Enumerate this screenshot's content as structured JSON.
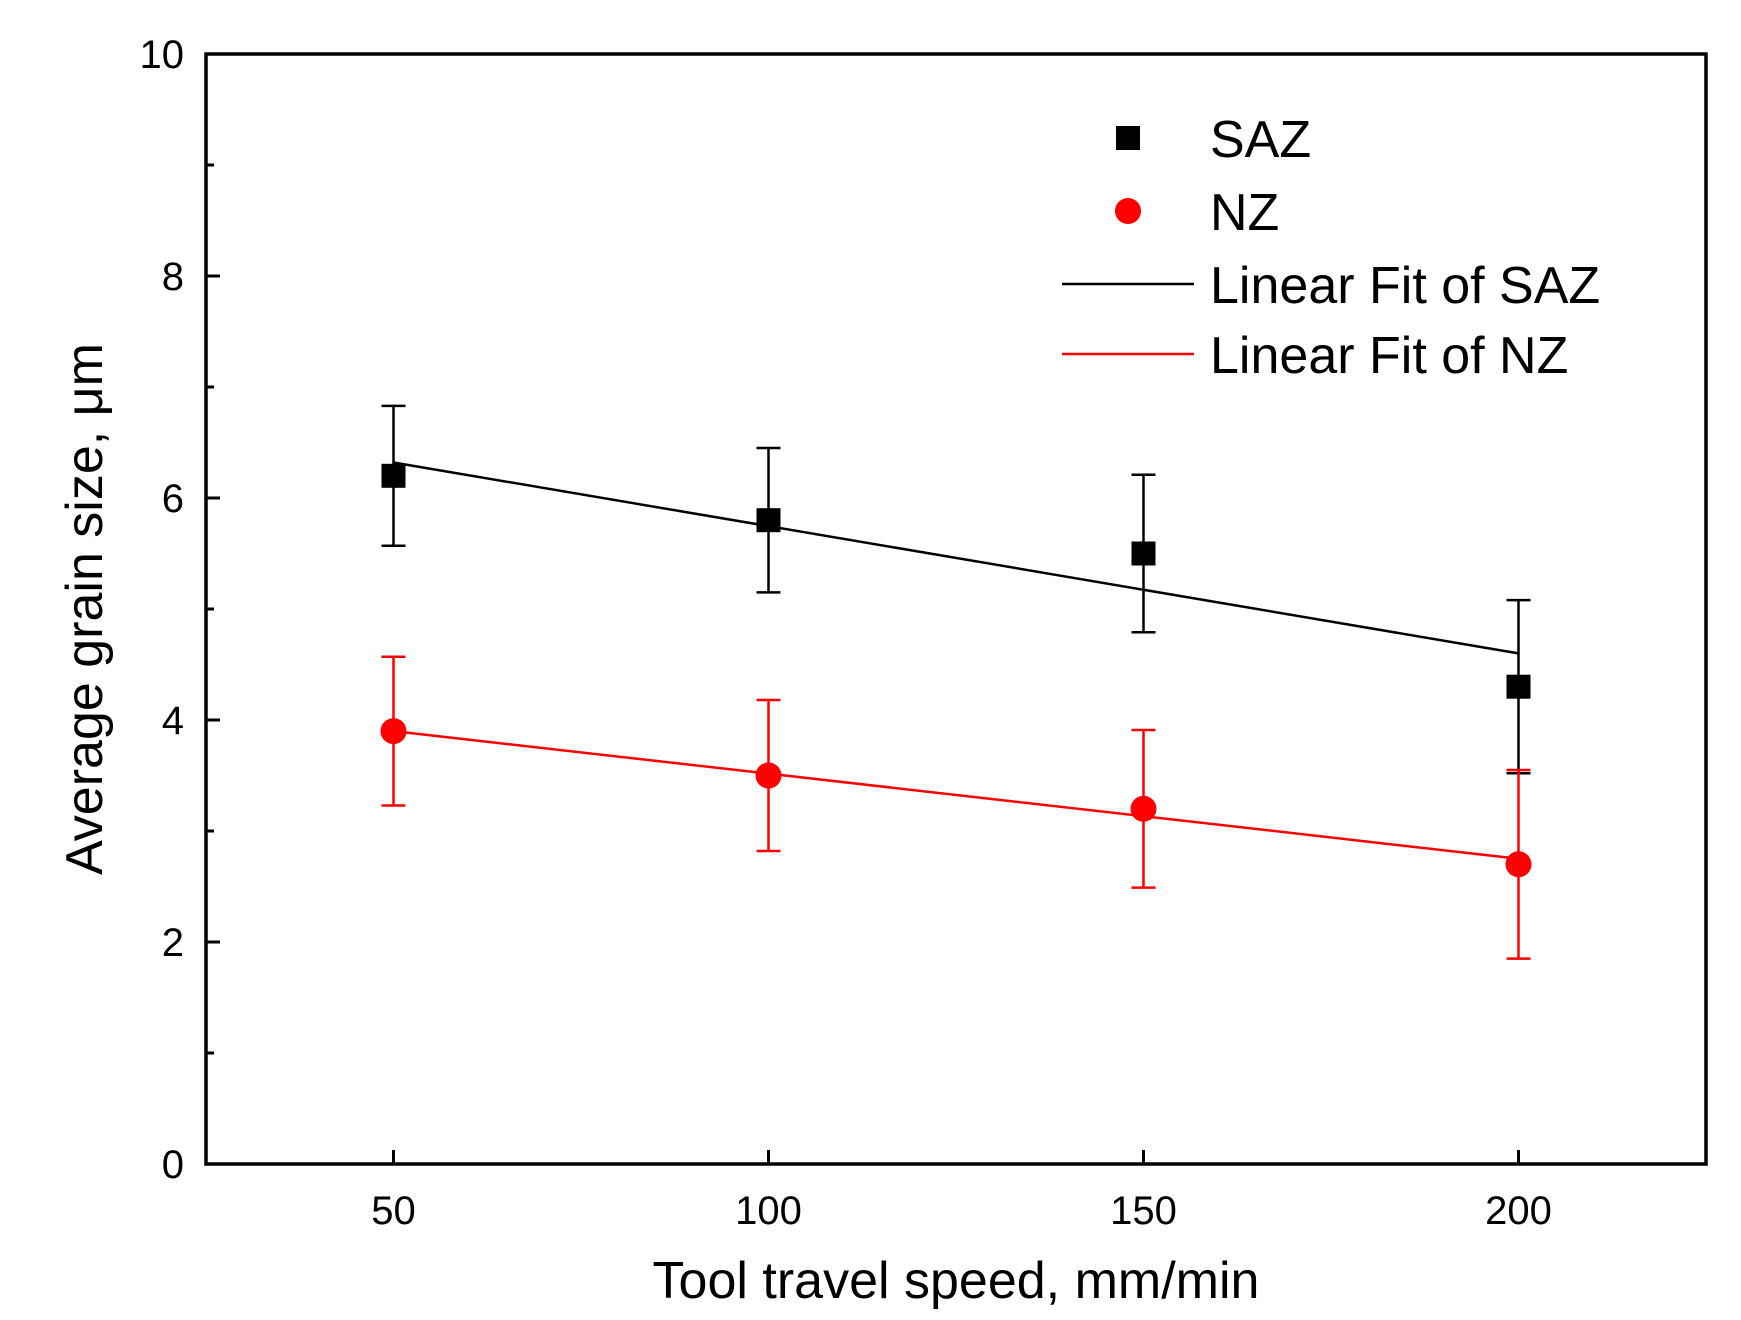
{
  "chart_data": {
    "type": "scatter",
    "title": "",
    "xlabel": "Tool travel speed, mm/min",
    "ylabel": "Average grain size, μm",
    "xlim": [
      25,
      225
    ],
    "ylim": [
      0,
      10
    ],
    "xticks": [
      50,
      100,
      150,
      200
    ],
    "xtick_labels": [
      "50",
      "100",
      "150",
      "200"
    ],
    "yticks": [
      0,
      2,
      4,
      6,
      8,
      10
    ],
    "ytick_labels": [
      "0",
      "2",
      "4",
      "6",
      "8",
      "10"
    ],
    "yminor_ticks": [
      1,
      3,
      5,
      7,
      9
    ],
    "grid": false,
    "legend_position": "top-right",
    "x": [
      50,
      100,
      150,
      200
    ],
    "series": [
      {
        "name": "SAZ",
        "marker": "square",
        "color": "#000000",
        "values": [
          6.2,
          5.8,
          5.5,
          4.3
        ],
        "error": [
          0.63,
          0.65,
          0.71,
          0.78
        ]
      },
      {
        "name": "NZ",
        "marker": "circle",
        "color": "#ff0000",
        "values": [
          3.9,
          3.5,
          3.2,
          2.7
        ],
        "error": [
          0.67,
          0.68,
          0.71,
          0.85
        ]
      }
    ],
    "fits": [
      {
        "name": "Linear Fit of SAZ",
        "color": "#000000",
        "x": [
          50,
          200
        ],
        "y": [
          6.32,
          4.6
        ]
      },
      {
        "name": "Linear Fit of NZ",
        "color": "#ff0000",
        "x": [
          50,
          200
        ],
        "y": [
          3.9,
          2.75
        ]
      }
    ]
  }
}
